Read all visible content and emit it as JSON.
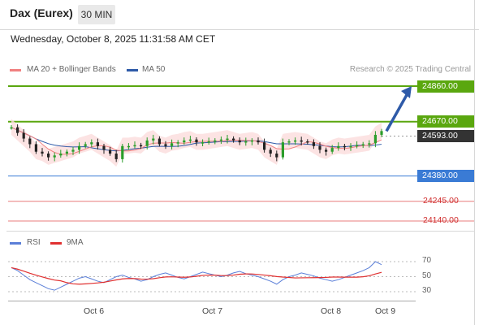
{
  "header": {
    "title": "Dax (Eurex)",
    "timeframe": "30 MIN"
  },
  "datetime": "Wednesday, October 8, 2025 11:31:58 AM CET",
  "legend": {
    "ma20": "MA 20 + Bollinger Bands",
    "ma50": "MA 50"
  },
  "research": "Research © 2025 Trading Central",
  "rsi_legend": {
    "rsi": "RSI",
    "ma9": "9MA"
  },
  "colors": {
    "resistance": "#5aa70f",
    "support": "#3a7bd5",
    "target": "#e87d7d",
    "current": "#333333",
    "ma20": "#f08080",
    "ma50": "#2e5aa8",
    "arrow": "#2e5aa8",
    "bollinger": "#fbdcdc",
    "up": "#2a9d2a",
    "down": "#222222",
    "rsi": "#5b7fd8",
    "rsi_ma": "#e03030"
  },
  "levels": [
    {
      "value": 24860.0,
      "label": "24860.00",
      "type": "resistance"
    },
    {
      "value": 24670.0,
      "label": "24670.00",
      "type": "resistance"
    },
    {
      "value": 24593.0,
      "label": "24593.00",
      "type": "current"
    },
    {
      "value": 24380.0,
      "label": "24380.00",
      "type": "support"
    },
    {
      "value": 24245.0,
      "label": "24245.00",
      "type": "target"
    },
    {
      "value": 24140.0,
      "label": "24140.00",
      "type": "target"
    }
  ],
  "chart_data": [
    {
      "type": "candlestick",
      "title": "",
      "x_labels": [
        "Oct 6",
        "Oct 7",
        "Oct 8",
        "Oct 9"
      ],
      "ylim": [
        24110,
        24880
      ],
      "close_path": [
        24640,
        24610,
        24580,
        24550,
        24510,
        24500,
        24480,
        24490,
        24500,
        24510,
        24520,
        24540,
        24550,
        24560,
        24540,
        24520,
        24500,
        24470,
        24540,
        24540,
        24545,
        24540,
        24570,
        24580,
        24550,
        24540,
        24555,
        24560,
        24570,
        24575,
        24560,
        24560,
        24565,
        24570,
        24575,
        24580,
        24570,
        24560,
        24565,
        24570,
        24560,
        24520,
        24500,
        24480,
        24560,
        24565,
        24570,
        24565,
        24560,
        24540,
        24520,
        24510,
        24530,
        24540,
        24535,
        24540,
        24545,
        24550,
        24555,
        24600,
        24620
      ],
      "projection": {
        "from": 24620,
        "to": 24860
      },
      "rsi": {
        "ticks": [
          70,
          50,
          30
        ],
        "ylim": [
          20,
          80
        ]
      }
    }
  ]
}
